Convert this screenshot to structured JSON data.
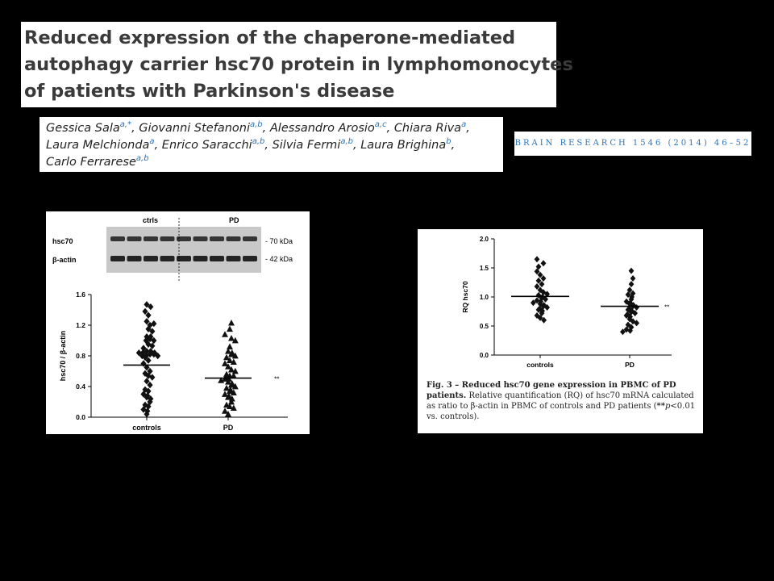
{
  "paper": {
    "title_lines": [
      "Reduced expression of the chaperone-mediated",
      "autophagy carrier hsc70 protein in lymphomonocytes",
      "of patients with Parkinson's disease"
    ],
    "authors": [
      {
        "name": "Gessica Sala",
        "sup": "a,*",
        "sep": ", "
      },
      {
        "name": "Giovanni Stefanoni",
        "sup": "a,b",
        "sep": ", "
      },
      {
        "name": "Alessandro Arosio",
        "sup": "a,c",
        "sep": ", "
      },
      {
        "name": "Chiara Riva",
        "sup": "a",
        "sep": ","
      },
      {
        "name": "Laura Melchionda",
        "sup": "a",
        "sep": ", "
      },
      {
        "name": "Enrico Saracchi",
        "sup": "a,b",
        "sep": ", "
      },
      {
        "name": "Silvia Fermi",
        "sup": "a,b",
        "sep": ", "
      },
      {
        "name": "Laura Brighina",
        "sup": "b",
        "sep": ","
      },
      {
        "name": "Carlo Ferrarese",
        "sup": "a,b",
        "sep": ""
      }
    ],
    "journal": "BRAIN RESEARCH 1546 (2014) 46–52"
  },
  "blot": {
    "group_labels": [
      "ctrls",
      "PD"
    ],
    "rows": [
      {
        "label": "hsc70",
        "marker": "- 70 kDa"
      },
      {
        "label": "β-actin",
        "marker": "- 42 kDa"
      }
    ]
  },
  "chart_data": [
    {
      "type": "scatter",
      "title": "",
      "xlabel": "",
      "ylabel": "hsc70 / β-actin",
      "categories": [
        "controls",
        "PD"
      ],
      "ylim": [
        0,
        1.6
      ],
      "yticks": [
        "0.0",
        "0.4",
        "0.8",
        "1.2",
        "1.6"
      ],
      "means": [
        0.68,
        0.51
      ],
      "annotation": "**",
      "series": [
        {
          "values": [
            1.47,
            1.44,
            1.38,
            1.33,
            1.25,
            1.2,
            1.22,
            1.15,
            1.12,
            1.05,
            1.05,
            1.02,
            1.0,
            1.0,
            0.95,
            0.93,
            0.9,
            0.86,
            0.86,
            0.84,
            0.84,
            0.84,
            0.82,
            0.82,
            0.8,
            0.8,
            0.8,
            0.78,
            0.74,
            0.7,
            0.65,
            0.6,
            0.57,
            0.54,
            0.52,
            0.47,
            0.42,
            0.36,
            0.34,
            0.3,
            0.28,
            0.26,
            0.24,
            0.2,
            0.16,
            0.14,
            0.1,
            0.08,
            0.04
          ]
        },
        {
          "values": [
            1.23,
            1.15,
            1.08,
            1.03,
            1.0,
            0.92,
            0.86,
            0.84,
            0.82,
            0.8,
            0.78,
            0.74,
            0.72,
            0.7,
            0.66,
            0.62,
            0.6,
            0.56,
            0.54,
            0.54,
            0.52,
            0.5,
            0.5,
            0.48,
            0.46,
            0.44,
            0.42,
            0.4,
            0.38,
            0.36,
            0.34,
            0.32,
            0.3,
            0.28,
            0.26,
            0.24,
            0.2,
            0.16,
            0.14,
            0.12,
            0.08,
            0.04
          ]
        }
      ]
    },
    {
      "type": "scatter",
      "title": "",
      "xlabel": "",
      "ylabel": "RQ hsc70",
      "categories": [
        "controls",
        "PD"
      ],
      "ylim": [
        0,
        2.0
      ],
      "yticks": [
        "0.0",
        "0.5",
        "1.0",
        "1.5",
        "2.0"
      ],
      "means": [
        1.01,
        0.84
      ],
      "annotation": "**",
      "series": [
        {
          "values": [
            1.65,
            1.58,
            1.52,
            1.44,
            1.38,
            1.32,
            1.28,
            1.22,
            1.18,
            1.12,
            1.08,
            1.05,
            1.03,
            1.0,
            0.98,
            0.96,
            0.94,
            0.92,
            0.9,
            0.88,
            0.86,
            0.84,
            0.82,
            0.8,
            0.78,
            0.76,
            0.72,
            0.68,
            0.64,
            0.6
          ]
        },
        {
          "values": [
            1.45,
            1.32,
            1.22,
            1.12,
            1.06,
            1.04,
            1.0,
            0.96,
            0.92,
            0.9,
            0.88,
            0.86,
            0.84,
            0.82,
            0.8,
            0.78,
            0.76,
            0.74,
            0.72,
            0.7,
            0.68,
            0.66,
            0.62,
            0.58,
            0.55,
            0.52,
            0.48,
            0.44,
            0.42,
            0.4
          ]
        }
      ]
    }
  ],
  "figure3": {
    "caption_bold": "Fig. 3 – Reduced hsc70 gene expression in PBMC of PD patients.",
    "caption_text": " Relative quantification (RQ) of hsc70 mRNA calculated as ratio to β-actin in PBMC of controls and PD patients (",
    "caption_stars": "**",
    "caption_p": "p",
    "caption_end": "<0.01 vs. controls)."
  }
}
